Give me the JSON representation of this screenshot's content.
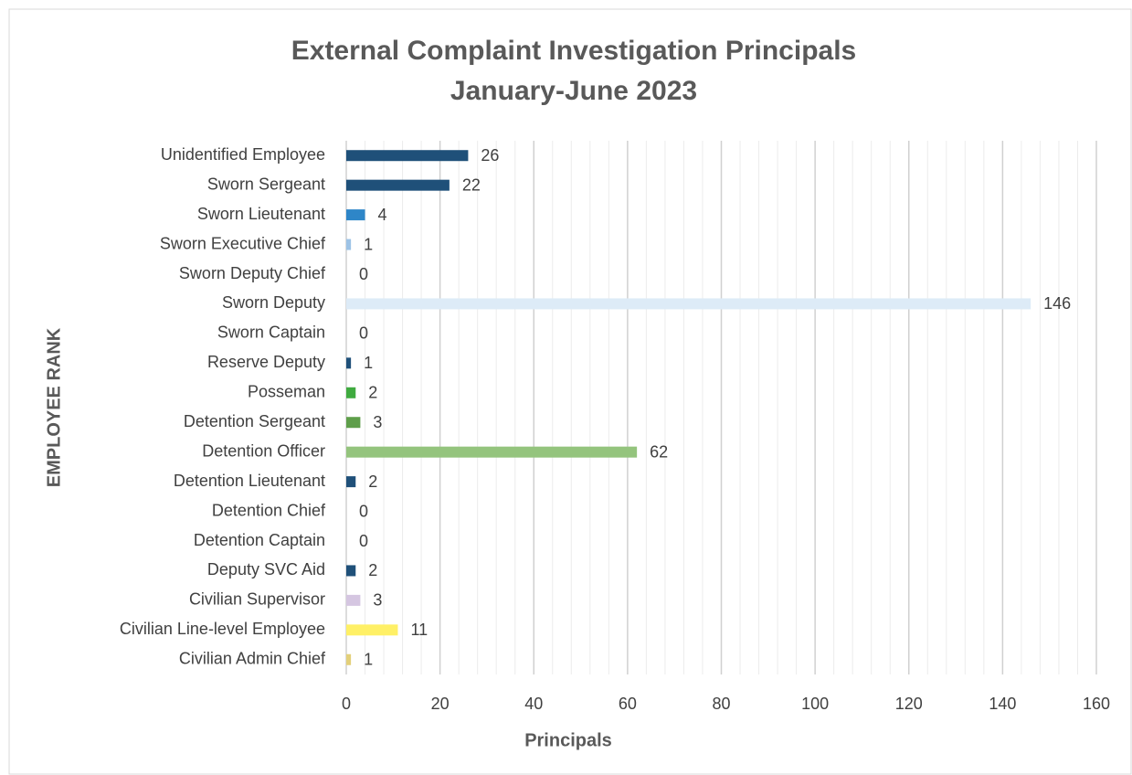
{
  "chart_data": {
    "type": "hbar",
    "title": [
      "External Complaint Investigation Principals",
      "January-June 2023"
    ],
    "x_label": "Principals",
    "y_label": "EMPLOYEE RANK",
    "categories": [
      "Unidentified Employee",
      "Sworn Sergeant",
      "Sworn Lieutenant",
      "Sworn Executive Chief",
      "Sworn Deputy Chief",
      "Sworn Deputy",
      "Sworn Captain",
      "Reserve Deputy",
      "Posseman",
      "Detention Sergeant",
      "Detention Officer",
      "Detention Lieutenant",
      "Detention Chief",
      "Detention Captain",
      "Deputy SVC Aid",
      "Civilian Supervisor",
      "Civilian Line-level Employee",
      "Civilian Admin Chief"
    ],
    "values": [
      26,
      22,
      4,
      1,
      0,
      146,
      0,
      1,
      2,
      3,
      62,
      2,
      0,
      0,
      2,
      3,
      11,
      1
    ],
    "colors": [
      "#1f5079",
      "#1f5079",
      "#2e86c8",
      "#9dc3e6",
      "#1f5079",
      "#ddebf7",
      "#1f5079",
      "#1f5079",
      "#3faa3f",
      "#5e9e4a",
      "#94c47d",
      "#1f5079",
      "#1f5079",
      "#1f5079",
      "#1f5079",
      "#d5c6e1",
      "#fff066",
      "#e3d07a"
    ],
    "xlim": [
      0,
      160
    ],
    "xticks": [
      0,
      20,
      40,
      60,
      80,
      100,
      120,
      140,
      160
    ],
    "grid": true
  }
}
